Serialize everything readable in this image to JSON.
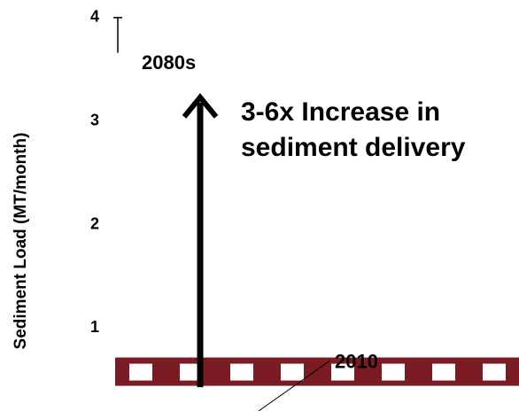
{
  "chart_data": {
    "type": "annotated-range",
    "y_label": "Sediment Load (MT/month)",
    "ylim": [
      0.2,
      4.17
    ],
    "yticks": [
      1,
      2,
      3,
      4
    ],
    "markers": [
      {
        "label": "2010",
        "value": 0.58,
        "color": "#7b1c24"
      },
      {
        "label": "2080s",
        "value": 3.83,
        "error": 0.17,
        "color": "#000000"
      }
    ],
    "arrow": {
      "from": 0.43,
      "to": 3.23,
      "text": [
        "3-6x Increase in",
        "sediment delivery"
      ],
      "color": "#000000"
    }
  }
}
